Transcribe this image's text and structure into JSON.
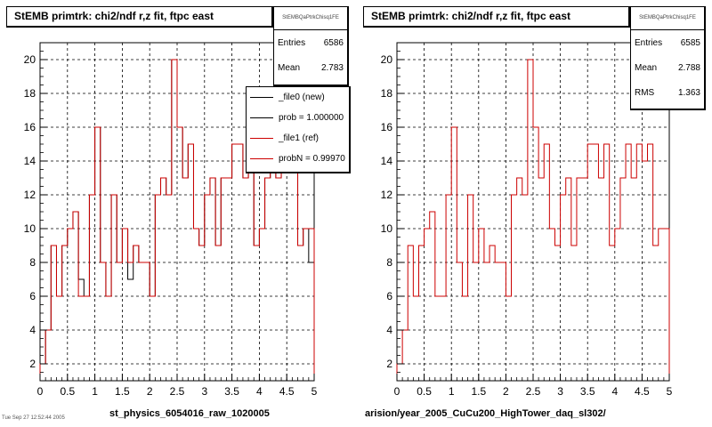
{
  "chart_data": [
    {
      "type": "histogram",
      "title": "StEMB primtrk: chi2/ndf r,z fit, ftpc east",
      "xlabel": "st_physics_6054016_raw_1020005",
      "ylabel": "",
      "xlim": [
        0,
        5
      ],
      "ylim": [
        1,
        21
      ],
      "xticks": [
        0,
        0.5,
        1,
        1.5,
        2,
        2.5,
        3,
        3.5,
        4,
        4.5,
        5
      ],
      "xtick_labels": [
        "0",
        "0.5",
        "1",
        "1.5",
        "2",
        "2.5",
        "3",
        "3.5",
        "4",
        "4.5",
        "5"
      ],
      "yticks": [
        2,
        4,
        6,
        8,
        10,
        12,
        14,
        16,
        18,
        20
      ],
      "ytick_labels": [
        "2",
        "4",
        "6",
        "8",
        "10",
        "12",
        "14",
        "16",
        "18",
        "20"
      ],
      "grid": true,
      "bin_edges": [
        0,
        0.1,
        0.2,
        0.3,
        0.4,
        0.5,
        0.6,
        0.7,
        0.8,
        0.9,
        1.0,
        1.1,
        1.2,
        1.3,
        1.4,
        1.5,
        1.6,
        1.7,
        1.8,
        1.9,
        2.0,
        2.1,
        2.2,
        2.3,
        2.4,
        2.5,
        2.6,
        2.7,
        2.8,
        2.9,
        3.0,
        3.1,
        3.2,
        3.3,
        3.4,
        3.5,
        3.6,
        3.7,
        3.8,
        3.9,
        4.0,
        4.1,
        4.2,
        4.3,
        4.4,
        4.5,
        4.6,
        4.7,
        4.8,
        4.9,
        5.0
      ],
      "series": [
        {
          "name": "_file0 (new)",
          "color": "#000000",
          "values": [
            2,
            4,
            9,
            6,
            9,
            10,
            11,
            7,
            6,
            12,
            16,
            8,
            6,
            12,
            8,
            10,
            7,
            9,
            8,
            8,
            6,
            12,
            13,
            12,
            20,
            16,
            13,
            15,
            10,
            9,
            12,
            13,
            9,
            13,
            13,
            15,
            15,
            13,
            15,
            9,
            10,
            13,
            15,
            13,
            15,
            14,
            15,
            9,
            10,
            8
          ]
        },
        {
          "name": "_file1 (ref)",
          "color": "#cc0000",
          "values": [
            2,
            4,
            9,
            6,
            9,
            10,
            11,
            6,
            6,
            12,
            16,
            8,
            6,
            12,
            8,
            10,
            8,
            9,
            8,
            8,
            6,
            12,
            13,
            12,
            20,
            16,
            13,
            15,
            10,
            9,
            12,
            13,
            9,
            13,
            13,
            15,
            15,
            13,
            15,
            9,
            10,
            13,
            15,
            13,
            15,
            14,
            15,
            9,
            10,
            10
          ]
        }
      ],
      "stats": {
        "name": "StEMBQaPtrkChisq1FE",
        "rows": [
          {
            "label": "Entries",
            "value": "6586"
          },
          {
            "label": "Mean",
            "value": "2.783"
          }
        ]
      },
      "legend": [
        {
          "label": "_file0 (new)",
          "color": "#000000"
        },
        {
          "label": "prob = 1.000000",
          "color": "#000000"
        },
        {
          "label": "_file1 (ref)",
          "color": "#cc0000"
        },
        {
          "label": "probN = 0.99970",
          "color": "#cc0000"
        }
      ],
      "legend_position": "top-right"
    },
    {
      "type": "histogram",
      "title": "StEMB primtrk: chi2/ndf r,z fit, ftpc east",
      "xlabel": "arision/year_2005_CuCu200_HighTower_daq_sl302/",
      "ylabel": "",
      "xlim": [
        0,
        5
      ],
      "ylim": [
        1,
        21
      ],
      "xticks": [
        0,
        0.5,
        1,
        1.5,
        2,
        2.5,
        3,
        3.5,
        4,
        4.5,
        5
      ],
      "xtick_labels": [
        "0",
        "0.5",
        "1",
        "1.5",
        "2",
        "2.5",
        "3",
        "3.5",
        "4",
        "4.5",
        "5"
      ],
      "yticks": [
        2,
        4,
        6,
        8,
        10,
        12,
        14,
        16,
        18,
        20
      ],
      "ytick_labels": [
        "2",
        "4",
        "6",
        "8",
        "10",
        "12",
        "14",
        "16",
        "18",
        "20"
      ],
      "grid": true,
      "bin_edges": [
        0,
        0.1,
        0.2,
        0.3,
        0.4,
        0.5,
        0.6,
        0.7,
        0.8,
        0.9,
        1.0,
        1.1,
        1.2,
        1.3,
        1.4,
        1.5,
        1.6,
        1.7,
        1.8,
        1.9,
        2.0,
        2.1,
        2.2,
        2.3,
        2.4,
        2.5,
        2.6,
        2.7,
        2.8,
        2.9,
        3.0,
        3.1,
        3.2,
        3.3,
        3.4,
        3.5,
        3.6,
        3.7,
        3.8,
        3.9,
        4.0,
        4.1,
        4.2,
        4.3,
        4.4,
        4.5,
        4.6,
        4.7,
        4.8,
        4.9,
        5.0
      ],
      "series": [
        {
          "name": "",
          "color": "#cc0000",
          "values": [
            2,
            4,
            9,
            6,
            9,
            10,
            11,
            6,
            6,
            12,
            16,
            8,
            6,
            12,
            8,
            10,
            8,
            9,
            8,
            8,
            6,
            12,
            13,
            12,
            20,
            16,
            13,
            15,
            10,
            9,
            12,
            13,
            9,
            13,
            13,
            15,
            15,
            13,
            15,
            9,
            10,
            13,
            15,
            13,
            15,
            14,
            15,
            9,
            10,
            10
          ]
        }
      ],
      "stats": {
        "name": "StEMBQaPtrkChisq1FE",
        "rows": [
          {
            "label": "Entries",
            "value": "6585"
          },
          {
            "label": "Mean",
            "value": "2.788"
          },
          {
            "label": "RMS",
            "value": "1.363"
          }
        ]
      }
    }
  ],
  "footer_text": "Tue Sep 27 12:52:44 2005"
}
